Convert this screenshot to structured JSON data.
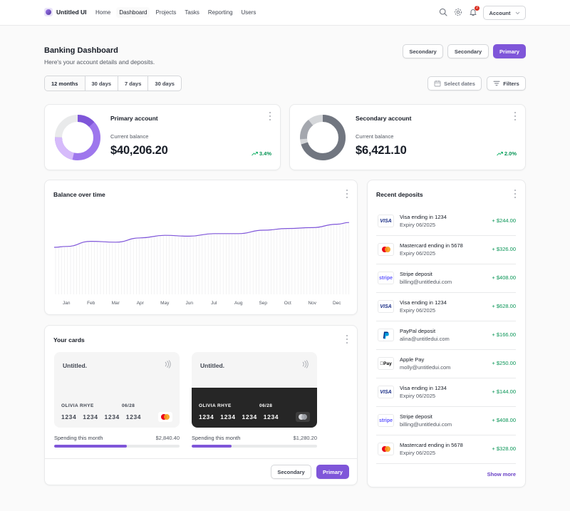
{
  "app": {
    "name": "Untitled UI"
  },
  "nav": [
    {
      "label": "Home",
      "active": false
    },
    {
      "label": "Dashboard",
      "active": true
    },
    {
      "label": "Projects",
      "active": false
    },
    {
      "label": "Tasks",
      "active": false
    },
    {
      "label": "Reporting",
      "active": false
    },
    {
      "label": "Users",
      "active": false
    }
  ],
  "topbar": {
    "notification_count": "2",
    "account_label": "Account"
  },
  "header": {
    "title": "Banking Dashboard",
    "subtitle": "Here's your account details and deposits.",
    "secondary1": "Secondary",
    "secondary2": "Secondary",
    "primary": "Primary"
  },
  "periods": [
    "12 months",
    "30 days",
    "7 days",
    "30 days"
  ],
  "filters": {
    "select_dates": "Select dates",
    "filters": "Filters"
  },
  "accounts": [
    {
      "name": "Primary account",
      "label": "Current balance",
      "balance": "$40,206.20",
      "change": "3.4%",
      "ring_color": "#9e77ed",
      "ring_fraction": 0.75
    },
    {
      "name": "Secondary account",
      "label": "Current balance",
      "balance": "$6,421.10",
      "change": "2.0%",
      "ring_color": "#717680",
      "ring_fraction": 0.7
    }
  ],
  "balance_chart": {
    "title": "Balance over time",
    "months": [
      "Jan",
      "Feb",
      "Mar",
      "Apr",
      "May",
      "Jun",
      "Jul",
      "Aug",
      "Sep",
      "Oct",
      "Nov",
      "Dec"
    ]
  },
  "chart_data": {
    "type": "line",
    "title": "Balance over time",
    "categories": [
      "Jan",
      "Feb",
      "Mar",
      "Apr",
      "May",
      "Jun",
      "Jul",
      "Aug",
      "Sep",
      "Oct",
      "Nov",
      "Dec"
    ],
    "values": [
      56,
      62,
      61,
      66,
      69,
      68,
      71,
      71,
      75,
      77,
      78,
      82
    ],
    "ylim": [
      0,
      100
    ],
    "line_color": "#7f56d9"
  },
  "cards": {
    "title": "Your cards",
    "items": [
      {
        "brand": "Untitled.",
        "holder": "OLIVIA RHYE",
        "expiry": "06/28",
        "number": "1234 1234 1234 1234",
        "spend_label": "Spending this month",
        "spend_value": "$2,840.40",
        "progress": 0.58,
        "theme": "light"
      },
      {
        "brand": "Untitled.",
        "holder": "OLIVIA RHYE",
        "expiry": "06/28",
        "number": "1234 1234 1234 1234",
        "spend_label": "Spending this month",
        "spend_value": "$1,280.20",
        "progress": 0.32,
        "theme": "dark"
      }
    ],
    "secondary": "Secondary",
    "primary": "Primary"
  },
  "deposits": {
    "title": "Recent deposits",
    "show_more": "Show more",
    "items": [
      {
        "logo": "visa",
        "title": "Visa ending in 1234",
        "subtitle": "Expiry 06/2025",
        "amount": "+ $244.00"
      },
      {
        "logo": "mastercard",
        "title": "Mastercard ending in 5678",
        "subtitle": "Expiry 06/2025",
        "amount": "+ $326.00"
      },
      {
        "logo": "stripe",
        "title": "Stripe deposit",
        "subtitle": "billing@untitledui.com",
        "amount": "+ $408.00"
      },
      {
        "logo": "visa",
        "title": "Visa ending in 1234",
        "subtitle": "Expiry 06/2025",
        "amount": "+ $628.00"
      },
      {
        "logo": "paypal",
        "title": "PayPal deposit",
        "subtitle": "alina@untitledui.com",
        "amount": "+ $166.00"
      },
      {
        "logo": "applepay",
        "title": "Apple Pay",
        "subtitle": "molly@untitledui.com",
        "amount": "+ $250.00"
      },
      {
        "logo": "visa",
        "title": "Visa ending in 1234",
        "subtitle": "Expiry 06/2025",
        "amount": "+ $144.00"
      },
      {
        "logo": "stripe",
        "title": "Stripe deposit",
        "subtitle": "billing@untitledui.com",
        "amount": "+ $408.00"
      },
      {
        "logo": "mastercard",
        "title": "Mastercard ending in 5678",
        "subtitle": "Expiry 06/2025",
        "amount": "+ $328.00"
      }
    ]
  }
}
